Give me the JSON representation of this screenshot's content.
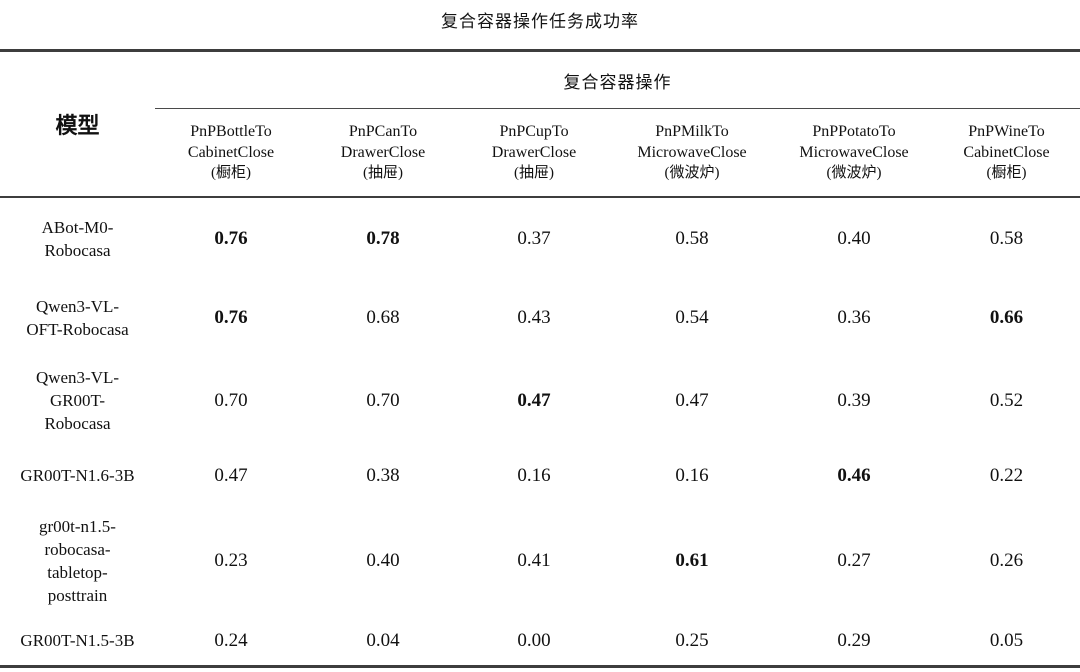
{
  "title": "复合容器操作任务成功率",
  "table": {
    "model_col_header": "模型",
    "group_header": "复合容器操作",
    "columns": [
      {
        "line1": "PnPBottleTo",
        "line2": "CabinetClose",
        "zh": "(橱柜)"
      },
      {
        "line1": "PnPCanTo",
        "line2": "DrawerClose",
        "zh": "(抽屉)"
      },
      {
        "line1": "PnPCupTo",
        "line2": "DrawerClose",
        "zh": "(抽屉)"
      },
      {
        "line1": "PnPMilkTo",
        "line2": "MicrowaveClose",
        "zh": "(微波炉)"
      },
      {
        "line1": "PnPPotatoTo",
        "line2": "MicrowaveClose",
        "zh": "(微波炉)"
      },
      {
        "line1": "PnPWineTo",
        "line2": "CabinetClose",
        "zh": "(橱柜)"
      }
    ],
    "rows": [
      {
        "model": "ABot-M0-Robocasa",
        "model_lines": [
          "ABot-M0-",
          "Robocasa"
        ],
        "values": [
          "0.76",
          "0.78",
          "0.37",
          "0.58",
          "0.40",
          "0.58"
        ],
        "bold": [
          true,
          true,
          false,
          false,
          false,
          false
        ]
      },
      {
        "model": "Qwen3-VL-OFT-Robocasa",
        "model_lines": [
          "Qwen3-VL-",
          "OFT-Robocasa"
        ],
        "values": [
          "0.76",
          "0.68",
          "0.43",
          "0.54",
          "0.36",
          "0.66"
        ],
        "bold": [
          true,
          false,
          false,
          false,
          false,
          true
        ]
      },
      {
        "model": "Qwen3-VL-GR00T-Robocasa",
        "model_lines": [
          "Qwen3-VL-",
          "GR00T-",
          "Robocasa"
        ],
        "values": [
          "0.70",
          "0.70",
          "0.47",
          "0.47",
          "0.39",
          "0.52"
        ],
        "bold": [
          false,
          false,
          true,
          false,
          false,
          false
        ]
      },
      {
        "model": "GR00T-N1.6-3B",
        "model_lines": [
          "GR00T-N1.6-3B"
        ],
        "values": [
          "0.47",
          "0.38",
          "0.16",
          "0.16",
          "0.46",
          "0.22"
        ],
        "bold": [
          false,
          false,
          false,
          false,
          true,
          false
        ]
      },
      {
        "model": "gr00t-n1.5-robocasa-tabletop-posttrain",
        "model_lines": [
          "gr00t-n1.5-",
          "robocasa-",
          "tabletop-",
          "posttrain"
        ],
        "values": [
          "0.23",
          "0.40",
          "0.41",
          "0.61",
          "0.27",
          "0.26"
        ],
        "bold": [
          false,
          false,
          false,
          true,
          false,
          false
        ]
      },
      {
        "model": "GR00T-N1.5-3B",
        "model_lines": [
          "GR00T-N1.5-3B"
        ],
        "values": [
          "0.24",
          "0.04",
          "0.00",
          "0.25",
          "0.29",
          "0.05"
        ],
        "bold": [
          false,
          false,
          false,
          false,
          false,
          false
        ]
      }
    ]
  },
  "chart_data": {
    "type": "table",
    "title": "复合容器操作任务成功率",
    "group_header": "复合容器操作",
    "row_header": "模型",
    "categories": [
      "PnPBottleToCabinetClose (橱柜)",
      "PnPCanToDrawerClose (抽屉)",
      "PnPCupToDrawerClose (抽屉)",
      "PnPMilkToMicrowaveClose (微波炉)",
      "PnPPotatoToMicrowaveClose (微波炉)",
      "PnPWineToCabinetClose (橱柜)"
    ],
    "series": [
      {
        "name": "ABot-M0-Robocasa",
        "values": [
          0.76,
          0.78,
          0.37,
          0.58,
          0.4,
          0.58
        ]
      },
      {
        "name": "Qwen3-VL-OFT-Robocasa",
        "values": [
          0.76,
          0.68,
          0.43,
          0.54,
          0.36,
          0.66
        ]
      },
      {
        "name": "Qwen3-VL-GR00T-Robocasa",
        "values": [
          0.7,
          0.7,
          0.47,
          0.47,
          0.39,
          0.52
        ]
      },
      {
        "name": "GR00T-N1.6-3B",
        "values": [
          0.47,
          0.38,
          0.16,
          0.16,
          0.46,
          0.22
        ]
      },
      {
        "name": "gr00t-n1.5-robocasa-tabletop-posttrain",
        "values": [
          0.23,
          0.4,
          0.41,
          0.61,
          0.27,
          0.26
        ]
      },
      {
        "name": "GR00T-N1.5-3B",
        "values": [
          0.24,
          0.04,
          0.0,
          0.25,
          0.29,
          0.05
        ]
      }
    ]
  }
}
